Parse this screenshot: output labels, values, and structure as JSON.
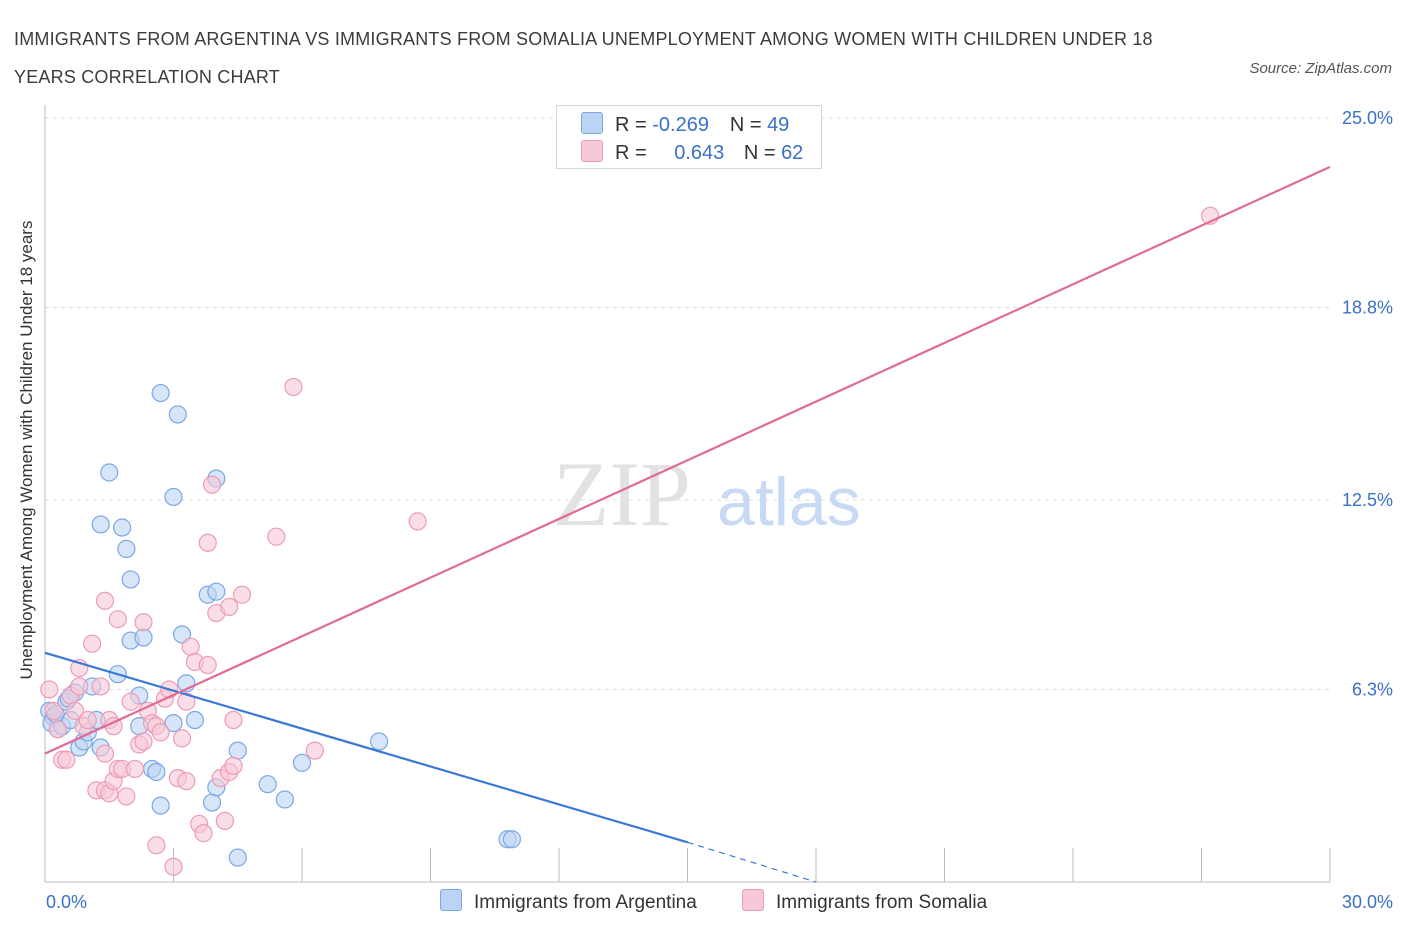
{
  "chart_data": {
    "type": "scatter",
    "title": "IMMIGRANTS FROM ARGENTINA VS IMMIGRANTS FROM SOMALIA UNEMPLOYMENT AMONG WOMEN WITH CHILDREN UNDER 18 YEARS CORRELATION CHART",
    "source": "Source: ZipAtlas.com",
    "xlabel": "",
    "ylabel": "Unemployment Among Women with Children Under 18 years",
    "xlim": [
      0,
      30
    ],
    "ylim": [
      0,
      25
    ],
    "x_tick_labels": {
      "min": "0.0%",
      "max": "30.0%"
    },
    "y_ticks": [
      {
        "value": 6.3,
        "label": "6.3%"
      },
      {
        "value": 12.5,
        "label": "12.5%"
      },
      {
        "value": 18.8,
        "label": "18.8%"
      },
      {
        "value": 25.0,
        "label": "25.0%"
      }
    ],
    "watermark": {
      "zip": "ZIP",
      "atlas": "atlas"
    },
    "legend_stats": [
      {
        "r_label": "R =",
        "r_value": "-0.269",
        "n_label": "N =",
        "n_value": "49"
      },
      {
        "r_label": "R =",
        "r_value": "0.643",
        "n_label": "N =",
        "n_value": "62"
      }
    ],
    "series": [
      {
        "name": "Immigrants from Argentina",
        "color": "#7aa7e6",
        "fill": "#bcd3f3",
        "line_color": "#3a78d4",
        "trend": {
          "x0": 0,
          "y0": 7.5,
          "x1": 15,
          "y1": 1.3,
          "dash_to_x": 18,
          "dash_to_y": 0.0
        },
        "points": [
          [
            0.1,
            5.6
          ],
          [
            0.2,
            5.4
          ],
          [
            0.15,
            5.2
          ],
          [
            0.3,
            5.0
          ],
          [
            0.4,
            5.1
          ],
          [
            0.5,
            5.9
          ],
          [
            0.6,
            5.3
          ],
          [
            0.7,
            6.2
          ],
          [
            0.8,
            4.4
          ],
          [
            0.9,
            4.6
          ],
          [
            1.0,
            4.9
          ],
          [
            1.1,
            6.4
          ],
          [
            1.2,
            5.3
          ],
          [
            1.3,
            4.4
          ],
          [
            0.55,
            6.0
          ],
          [
            0.25,
            5.5
          ],
          [
            1.3,
            11.7
          ],
          [
            1.5,
            13.4
          ],
          [
            1.8,
            11.6
          ],
          [
            1.9,
            10.9
          ],
          [
            2.0,
            9.9
          ],
          [
            2.0,
            7.9
          ],
          [
            2.3,
            8.0
          ],
          [
            1.7,
            6.8
          ],
          [
            2.2,
            6.1
          ],
          [
            2.2,
            5.1
          ],
          [
            2.5,
            3.7
          ],
          [
            2.6,
            3.6
          ],
          [
            2.7,
            2.5
          ],
          [
            3.0,
            5.2
          ],
          [
            2.7,
            16.0
          ],
          [
            3.1,
            15.3
          ],
          [
            3.0,
            12.6
          ],
          [
            3.2,
            8.1
          ],
          [
            3.3,
            6.5
          ],
          [
            3.5,
            5.3
          ],
          [
            3.8,
            9.4
          ],
          [
            4.0,
            9.5
          ],
          [
            4.0,
            13.2
          ],
          [
            3.9,
            2.6
          ],
          [
            4.0,
            3.1
          ],
          [
            4.5,
            4.3
          ],
          [
            4.5,
            0.8
          ],
          [
            5.2,
            3.2
          ],
          [
            5.6,
            2.7
          ],
          [
            6.0,
            3.9
          ],
          [
            7.8,
            4.6
          ],
          [
            10.8,
            1.4
          ],
          [
            10.9,
            1.4
          ]
        ]
      },
      {
        "name": "Immigrants from Somalia",
        "color": "#ee9bb5",
        "fill": "#f7c8d7",
        "line_color": "#e06b94",
        "trend": {
          "x0": 0,
          "y0": 4.2,
          "x1": 30,
          "y1": 23.4
        },
        "points": [
          [
            0.1,
            6.3
          ],
          [
            0.2,
            5.6
          ],
          [
            0.3,
            5.0
          ],
          [
            0.4,
            4.0
          ],
          [
            0.5,
            4.0
          ],
          [
            0.6,
            6.1
          ],
          [
            0.7,
            5.6
          ],
          [
            0.8,
            6.4
          ],
          [
            0.8,
            7.0
          ],
          [
            0.9,
            5.1
          ],
          [
            1.0,
            5.3
          ],
          [
            1.1,
            7.8
          ],
          [
            1.2,
            3.0
          ],
          [
            1.3,
            6.4
          ],
          [
            1.4,
            3.0
          ],
          [
            1.4,
            4.2
          ],
          [
            1.5,
            5.3
          ],
          [
            1.5,
            2.9
          ],
          [
            1.6,
            3.3
          ],
          [
            1.6,
            5.1
          ],
          [
            1.7,
            3.7
          ],
          [
            1.8,
            3.7
          ],
          [
            1.9,
            2.8
          ],
          [
            1.7,
            8.6
          ],
          [
            1.4,
            9.2
          ],
          [
            2.0,
            5.9
          ],
          [
            2.1,
            3.7
          ],
          [
            2.2,
            4.5
          ],
          [
            2.3,
            4.6
          ],
          [
            2.3,
            8.5
          ],
          [
            2.4,
            5.6
          ],
          [
            2.5,
            5.2
          ],
          [
            2.6,
            5.1
          ],
          [
            2.7,
            4.9
          ],
          [
            2.6,
            1.2
          ],
          [
            2.8,
            6.0
          ],
          [
            2.9,
            6.3
          ],
          [
            3.0,
            0.5
          ],
          [
            3.1,
            3.4
          ],
          [
            3.2,
            4.7
          ],
          [
            3.3,
            5.9
          ],
          [
            3.3,
            3.3
          ],
          [
            3.4,
            7.7
          ],
          [
            3.5,
            7.2
          ],
          [
            3.6,
            1.9
          ],
          [
            3.7,
            1.6
          ],
          [
            3.8,
            11.1
          ],
          [
            3.8,
            7.1
          ],
          [
            3.9,
            13.0
          ],
          [
            4.0,
            8.8
          ],
          [
            4.1,
            3.4
          ],
          [
            4.2,
            2.0
          ],
          [
            4.3,
            3.6
          ],
          [
            4.3,
            9.0
          ],
          [
            4.4,
            3.8
          ],
          [
            4.4,
            5.3
          ],
          [
            4.6,
            9.4
          ],
          [
            5.4,
            11.3
          ],
          [
            5.8,
            16.2
          ],
          [
            6.3,
            4.3
          ],
          [
            8.7,
            11.8
          ],
          [
            27.2,
            21.8
          ]
        ]
      }
    ]
  }
}
